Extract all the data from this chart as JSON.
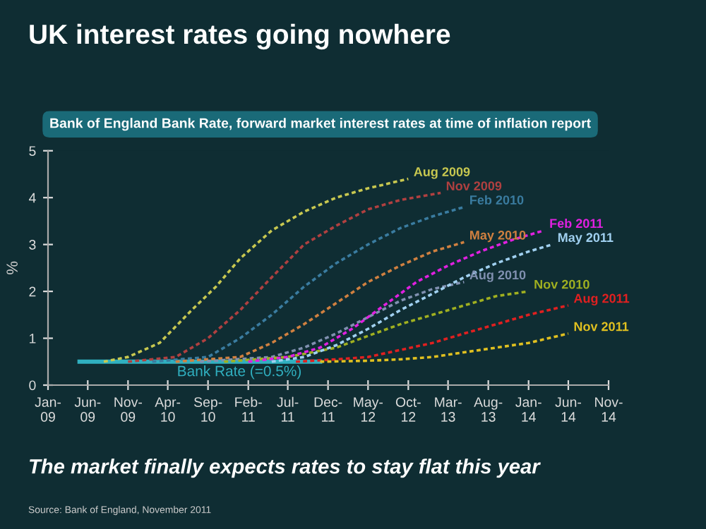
{
  "chart_data": {
    "type": "line",
    "title": "UK interest rates going nowhere",
    "subtitle": "Bank of England Bank Rate, forward market interest rates at time of inflation report",
    "ylabel": "%",
    "annotations": [
      "The market finally expects rates to stay flat this year",
      "Source: Bank of England, November 2011"
    ],
    "xlim": [
      "2009-01",
      "2014-11"
    ],
    "ylim": [
      0,
      5
    ],
    "yticks": [
      0,
      1,
      2,
      3,
      4,
      5
    ],
    "xticks": [
      {
        "value": "2009-01",
        "label": "Jan-\n09"
      },
      {
        "value": "2009-06",
        "label": "Jun-\n09"
      },
      {
        "value": "2009-11",
        "label": "Nov-\n09"
      },
      {
        "value": "2010-04",
        "label": "Apr-\n10"
      },
      {
        "value": "2010-09",
        "label": "Sep-\n10"
      },
      {
        "value": "2011-02",
        "label": "Feb-\n11"
      },
      {
        "value": "2011-07",
        "label": "Jul-\n11"
      },
      {
        "value": "2011-12",
        "label": "Dec-\n11"
      },
      {
        "value": "2012-05",
        "label": "May-\n12"
      },
      {
        "value": "2012-10",
        "label": "Oct-\n12"
      },
      {
        "value": "2013-03",
        "label": "Mar-\n13"
      },
      {
        "value": "2013-08",
        "label": "Aug-\n13"
      },
      {
        "value": "2014-01",
        "label": "Jan-\n14"
      },
      {
        "value": "2014-06",
        "label": "Jun-\n14"
      },
      {
        "value": "2014-11",
        "label": "Nov-\n14"
      }
    ],
    "grid": false,
    "marker": "none",
    "series": [
      {
        "name": "Bank Rate (=0.5%)",
        "color": "#30b0c0",
        "line_style": "solid",
        "x": [
          "2009-05",
          "2011-11"
        ],
        "values": [
          0.5,
          0.5
        ]
      },
      {
        "name": "Aug 2009",
        "color": "#c8c850",
        "line_style": "dashed",
        "x": [
          "2009-08",
          "2009-11",
          "2010-03",
          "2010-07",
          "2010-10",
          "2011-01",
          "2011-05",
          "2011-09",
          "2012-01",
          "2012-05",
          "2012-10"
        ],
        "values": [
          0.5,
          0.6,
          0.9,
          1.6,
          2.1,
          2.7,
          3.3,
          3.7,
          4.0,
          4.2,
          4.4
        ]
      },
      {
        "name": "Nov 2009",
        "color": "#b04040",
        "line_style": "dashed",
        "x": [
          "2009-11",
          "2010-05",
          "2010-09",
          "2011-01",
          "2011-05",
          "2011-09",
          "2012-01",
          "2012-05",
          "2012-09",
          "2013-02"
        ],
        "values": [
          0.5,
          0.6,
          1.0,
          1.6,
          2.3,
          3.0,
          3.4,
          3.75,
          3.95,
          4.1
        ]
      },
      {
        "name": "Feb 2010",
        "color": "#3a7ca0",
        "line_style": "dashed",
        "x": [
          "2010-02",
          "2010-09",
          "2011-01",
          "2011-05",
          "2011-09",
          "2012-01",
          "2012-05",
          "2012-09",
          "2013-01",
          "2013-05"
        ],
        "values": [
          0.5,
          0.6,
          1.0,
          1.5,
          2.1,
          2.6,
          3.0,
          3.35,
          3.6,
          3.8
        ]
      },
      {
        "name": "May 2010",
        "color": "#d08040",
        "line_style": "dashed",
        "x": [
          "2010-05",
          "2011-01",
          "2011-05",
          "2011-09",
          "2012-01",
          "2012-05",
          "2012-09",
          "2013-01",
          "2013-05"
        ],
        "values": [
          0.5,
          0.6,
          0.9,
          1.3,
          1.75,
          2.2,
          2.55,
          2.85,
          3.05
        ]
      },
      {
        "name": "Aug 2010",
        "color": "#8090b0",
        "line_style": "dashed",
        "x": [
          "2010-08",
          "2011-05",
          "2011-09",
          "2012-01",
          "2012-05",
          "2012-09",
          "2013-01",
          "2013-05"
        ],
        "values": [
          0.5,
          0.6,
          0.8,
          1.1,
          1.45,
          1.8,
          2.05,
          2.2
        ]
      },
      {
        "name": "Nov 2010",
        "color": "#a0b020",
        "line_style": "dashed",
        "x": [
          "2010-11",
          "2011-07",
          "2012-01",
          "2012-05",
          "2012-09",
          "2013-01",
          "2013-05",
          "2013-09",
          "2014-01"
        ],
        "values": [
          0.5,
          0.6,
          0.8,
          1.05,
          1.3,
          1.5,
          1.7,
          1.9,
          2.0
        ]
      },
      {
        "name": "Feb 2011",
        "color": "#e020e0",
        "line_style": "dashed",
        "x": [
          "2011-02",
          "2011-07",
          "2011-11",
          "2012-03",
          "2012-07",
          "2012-11",
          "2013-03",
          "2013-07",
          "2013-11",
          "2014-03"
        ],
        "values": [
          0.5,
          0.6,
          0.8,
          1.2,
          1.7,
          2.2,
          2.55,
          2.85,
          3.1,
          3.3
        ]
      },
      {
        "name": "May 2011",
        "color": "#a0d0f0",
        "line_style": "dashed",
        "x": [
          "2011-05",
          "2011-09",
          "2012-01",
          "2012-05",
          "2012-09",
          "2013-01",
          "2013-05",
          "2013-09",
          "2014-01",
          "2014-04"
        ],
        "values": [
          0.5,
          0.6,
          0.85,
          1.2,
          1.6,
          1.95,
          2.3,
          2.6,
          2.85,
          3.0
        ]
      },
      {
        "name": "Aug 2011",
        "color": "#e02020",
        "line_style": "dashed",
        "x": [
          "2011-08",
          "2012-01",
          "2012-05",
          "2012-09",
          "2013-01",
          "2013-05",
          "2013-09",
          "2014-01",
          "2014-06"
        ],
        "values": [
          0.5,
          0.55,
          0.6,
          0.75,
          0.9,
          1.1,
          1.3,
          1.5,
          1.7
        ]
      },
      {
        "name": "Nov 2011",
        "color": "#e0c020",
        "line_style": "dashed",
        "x": [
          "2011-11",
          "2012-05",
          "2012-09",
          "2013-01",
          "2013-05",
          "2013-09",
          "2014-01",
          "2014-06"
        ],
        "values": [
          0.5,
          0.52,
          0.55,
          0.6,
          0.7,
          0.8,
          0.9,
          1.1
        ]
      }
    ]
  }
}
